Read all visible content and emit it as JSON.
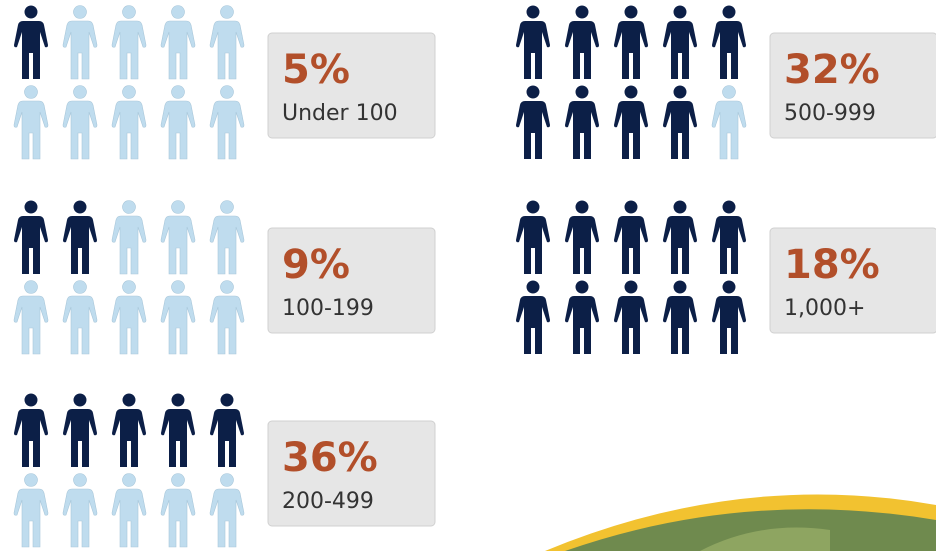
{
  "chart_data": {
    "type": "pictogram",
    "categories": [
      "Under 100",
      "100-199",
      "200-499",
      "500-999",
      "1,000+"
    ],
    "values": [
      5,
      9,
      36,
      32,
      18
    ],
    "value_labels": [
      "5%",
      "9%",
      "36%",
      "32%",
      "18%"
    ],
    "filled_icons": [
      1,
      2,
      5,
      9,
      10
    ],
    "icons_per_group": 10,
    "color": "#0c1f47",
    "empty_color": "#bfdcee",
    "label_color": "#b24f2a"
  }
}
